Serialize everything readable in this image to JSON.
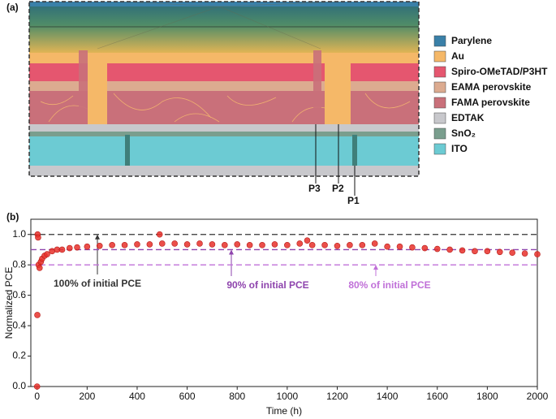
{
  "diagram": {
    "panel_label": "(a)",
    "legend": [
      "Parylene",
      "Au",
      "Spiro-OMeTAD/P3HT",
      "EAMA perovskite",
      "FAMA perovskite",
      "EDTAK",
      "SnO₂",
      "ITO"
    ],
    "scribes": [
      "P3",
      "P2",
      "P1"
    ]
  },
  "chart_data": {
    "type": "scatter",
    "panel_label": "(b)",
    "xlabel": "Time (h)",
    "ylabel": "Normalized PCE",
    "xlim": [
      -25,
      2000
    ],
    "ylim": [
      0,
      1.1
    ],
    "xticks": [
      0,
      200,
      400,
      600,
      800,
      1000,
      1200,
      1400,
      1600,
      1800,
      2000
    ],
    "yticks": [
      {
        "value": 0,
        "label": "0.0"
      },
      0.2,
      0.4,
      0.6,
      0.8,
      {
        "value": 1,
        "label": "1.0"
      }
    ],
    "x": [
      0,
      1,
      2,
      4,
      6,
      10,
      15,
      20,
      30,
      40,
      60,
      80,
      100,
      130,
      160,
      200,
      250,
      300,
      350,
      400,
      450,
      490,
      500,
      550,
      600,
      650,
      700,
      750,
      800,
      850,
      900,
      950,
      1000,
      1050,
      1080,
      1100,
      1150,
      1200,
      1250,
      1300,
      1350,
      1400,
      1450,
      1500,
      1550,
      1600,
      1650,
      1700,
      1750,
      1800,
      1850,
      1900,
      1950,
      2000
    ],
    "series": [
      {
        "color": "#e8302a",
        "values": [
          0.0,
          0.47,
          1.0,
          0.98,
          0.8,
          0.78,
          0.82,
          0.84,
          0.86,
          0.87,
          0.89,
          0.9,
          0.9,
          0.91,
          0.915,
          0.92,
          0.925,
          0.93,
          0.93,
          0.935,
          0.935,
          1.0,
          0.94,
          0.94,
          0.935,
          0.94,
          0.935,
          0.93,
          0.935,
          0.93,
          0.93,
          0.935,
          0.93,
          0.94,
          0.96,
          0.93,
          0.93,
          0.925,
          0.93,
          0.93,
          0.94,
          0.92,
          0.92,
          0.915,
          0.91,
          0.905,
          0.9,
          0.895,
          0.89,
          0.89,
          0.885,
          0.88,
          0.875,
          0.87
        ]
      }
    ],
    "reference_lines": [
      {
        "value": 1,
        "color": "#333333",
        "text": "100% of initial PCE"
      },
      {
        "value": 0.9,
        "color": "#8e44ad",
        "text": "90% of initial PCE"
      },
      {
        "value": 0.8,
        "color": "#c070d8",
        "text": "80% of initial PCE"
      }
    ]
  }
}
